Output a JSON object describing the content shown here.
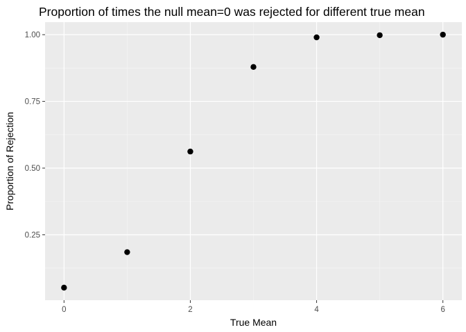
{
  "chart_data": {
    "type": "scatter",
    "title": "Proportion of times the null mean=0 was rejected for different true mean",
    "xlabel": "True Mean",
    "ylabel": "Proportion of Rejection",
    "x": [
      0,
      1,
      2,
      3,
      4,
      5,
      6
    ],
    "y": [
      0.052,
      0.185,
      0.562,
      0.879,
      0.99,
      0.998,
      1.0
    ],
    "xlim": [
      -0.3,
      6.3
    ],
    "ylim": [
      0.005,
      1.047
    ],
    "x_ticks": [
      0,
      2,
      4,
      6
    ],
    "x_tick_labels": [
      "0",
      "2",
      "4",
      "6"
    ],
    "x_minor_ticks": [
      1,
      3,
      5
    ],
    "y_ticks": [
      0.25,
      0.5,
      0.75,
      1.0
    ],
    "y_tick_labels": [
      "0.25",
      "0.50",
      "0.75",
      "1.00"
    ],
    "y_minor_ticks": [
      0.125,
      0.375,
      0.625,
      0.875
    ],
    "grid": true,
    "legend": "none",
    "colors": {
      "panel_background": "#ebebeb",
      "grid_major": "#ffffff",
      "grid_minor": "#f5f5f5",
      "point": "#000000",
      "tick_mark": "#333333",
      "tick_label": "#4d4d4d"
    }
  }
}
